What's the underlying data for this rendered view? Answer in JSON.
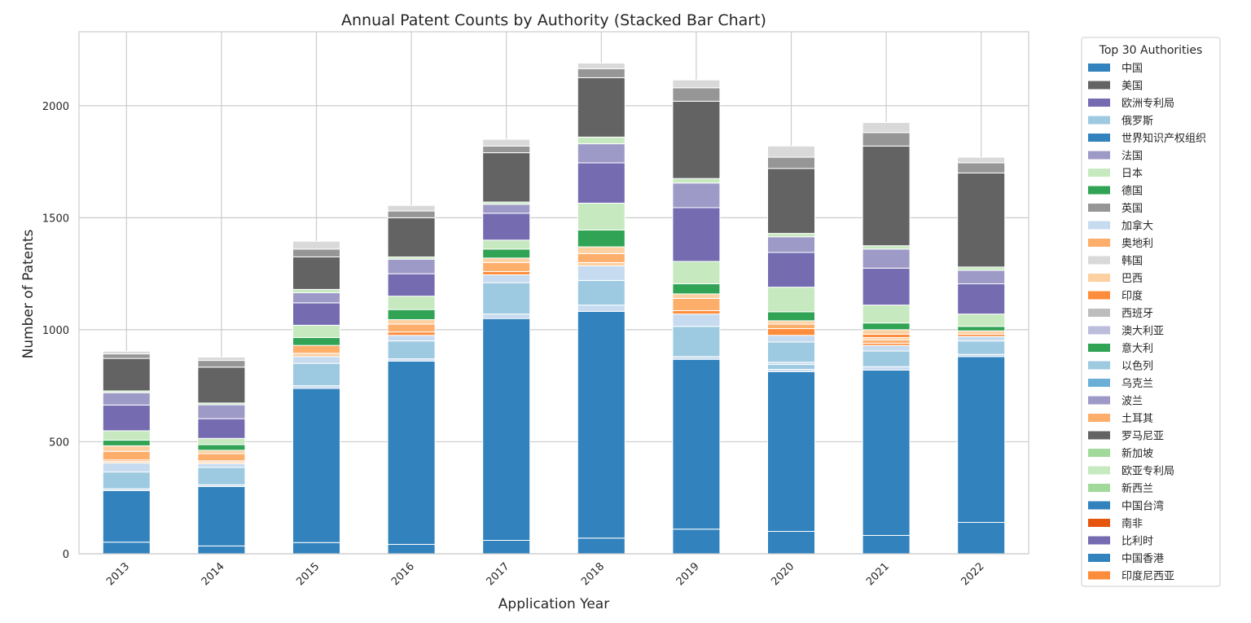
{
  "chart_data": {
    "type": "bar",
    "stacked": true,
    "title": "Annual Patent Counts by Authority (Stacked Bar Chart)",
    "xlabel": "Application Year",
    "ylabel": "Number of Patents",
    "ylim": [
      0,
      2330
    ],
    "yticks": [
      0,
      500,
      1000,
      1500,
      2000
    ],
    "grid": true,
    "legend_title": "Top 30 Authorities",
    "legend_position": "outside-right",
    "categories": [
      "2013",
      "2014",
      "2015",
      "2016",
      "2017",
      "2018",
      "2019",
      "2020",
      "2021",
      "2022"
    ],
    "series": [
      {
        "name": "中国",
        "color": "#3182bd",
        "values": [
          52,
          35,
          50,
          42,
          60,
          70,
          110,
          100,
          82,
          140
        ]
      },
      {
        "name": "美国",
        "color": "#636363",
        "values": [
          0,
          0,
          0,
          0,
          0,
          0,
          0,
          0,
          0,
          0
        ]
      },
      {
        "name": "欧洲专利局",
        "color": "#756bb1",
        "values": [
          0,
          0,
          0,
          0,
          0,
          0,
          0,
          0,
          0,
          0
        ]
      },
      {
        "name": "俄罗斯",
        "color": "#9ecae1",
        "values": [
          0,
          0,
          0,
          0,
          0,
          0,
          0,
          0,
          0,
          0
        ]
      },
      {
        "name": "世界知识产权组织",
        "color": "#3182bd",
        "values": [
          230,
          265,
          688,
          818,
          990,
          1012,
          758,
          713,
          738,
          740
        ]
      },
      {
        "name": "法国",
        "color": "#9e9ac8",
        "values": [
          0,
          0,
          0,
          0,
          0,
          0,
          0,
          0,
          0,
          0
        ]
      },
      {
        "name": "日本",
        "color": "#c7e9c0",
        "values": [
          0,
          0,
          0,
          0,
          0,
          0,
          0,
          0,
          0,
          0
        ]
      },
      {
        "name": "德国",
        "color": "#31a354",
        "values": [
          0,
          0,
          0,
          0,
          0,
          0,
          0,
          0,
          0,
          0
        ]
      },
      {
        "name": "英国",
        "color": "#969696",
        "values": [
          0,
          0,
          0,
          0,
          0,
          0,
          0,
          0,
          0,
          0
        ]
      },
      {
        "name": "加拿大",
        "color": "#c6dbef",
        "values": [
          0,
          0,
          0,
          0,
          0,
          0,
          0,
          0,
          0,
          0
        ]
      },
      {
        "name": "奥地利",
        "color": "#fdae6b",
        "values": [
          0,
          0,
          0,
          0,
          0,
          0,
          0,
          0,
          0,
          0
        ]
      },
      {
        "name": "韩国",
        "color": "#d9d9d9",
        "values": [
          0,
          0,
          0,
          0,
          0,
          0,
          0,
          0,
          0,
          0
        ]
      },
      {
        "name": "巴西",
        "color": "#fdd0a2",
        "values": [
          0,
          0,
          0,
          0,
          0,
          0,
          0,
          0,
          0,
          0
        ]
      },
      {
        "name": "印度",
        "color": "#fd8d3c",
        "values": [
          0,
          0,
          0,
          0,
          0,
          0,
          0,
          0,
          0,
          0
        ]
      },
      {
        "name": "西班牙",
        "color": "#bdbdbd",
        "values": [
          0,
          0,
          0,
          0,
          0,
          0,
          0,
          0,
          0,
          0
        ]
      },
      {
        "name": "澳大利亚",
        "color": "#bcbddc",
        "values": [
          0,
          0,
          0,
          0,
          0,
          0,
          0,
          0,
          0,
          0
        ]
      },
      {
        "name": "意大利",
        "color": "#31a354",
        "values": [
          0,
          0,
          0,
          0,
          0,
          0,
          0,
          0,
          0,
          0
        ]
      },
      {
        "name": "以色列",
        "color": "#9ecae1",
        "values": [
          0,
          0,
          0,
          0,
          0,
          0,
          0,
          0,
          0,
          0
        ]
      },
      {
        "name": "乌克兰",
        "color": "#6baed6",
        "values": [
          0,
          0,
          0,
          0,
          0,
          0,
          0,
          0,
          0,
          0
        ]
      },
      {
        "name": "波兰",
        "color": "#9e9ac8",
        "values": [
          0,
          0,
          0,
          0,
          0,
          0,
          0,
          0,
          0,
          0
        ]
      },
      {
        "name": "土耳其",
        "color": "#fdae6b",
        "values": [
          0,
          0,
          0,
          0,
          0,
          0,
          0,
          0,
          0,
          0
        ]
      },
      {
        "name": "罗马尼亚",
        "color": "#636363",
        "values": [
          0,
          0,
          0,
          0,
          0,
          0,
          0,
          0,
          0,
          0
        ]
      },
      {
        "name": "新加坡",
        "color": "#a1d99b",
        "values": [
          0,
          0,
          0,
          0,
          0,
          0,
          0,
          0,
          0,
          0
        ]
      },
      {
        "name": "欧亚专利局",
        "color": "#c7e9c0",
        "values": [
          0,
          0,
          0,
          0,
          0,
          0,
          0,
          0,
          0,
          0
        ]
      },
      {
        "name": "新西兰",
        "color": "#a1d99b",
        "values": [
          0,
          0,
          0,
          0,
          0,
          0,
          0,
          0,
          0,
          0
        ]
      },
      {
        "name": "中国台湾",
        "color": "#3182bd",
        "values": [
          0,
          0,
          0,
          0,
          0,
          0,
          0,
          0,
          0,
          0
        ]
      },
      {
        "name": "南非",
        "color": "#e6550d",
        "values": [
          0,
          0,
          0,
          0,
          0,
          0,
          0,
          0,
          0,
          0
        ]
      },
      {
        "name": "比利时",
        "color": "#756bb1",
        "values": [
          0,
          0,
          0,
          0,
          0,
          0,
          0,
          0,
          0,
          0
        ]
      },
      {
        "name": "中国香港",
        "color": "#3182bd",
        "values": [
          0,
          0,
          0,
          0,
          0,
          0,
          0,
          0,
          0,
          0
        ]
      },
      {
        "name": "印度尼西亚",
        "color": "#fd8d3c",
        "values": [
          0,
          0,
          0,
          0,
          0,
          0,
          0,
          0,
          0,
          0
        ]
      }
    ],
    "stack_segments": [
      [
        {
          "color": "#3182bd",
          "value": 52
        },
        {
          "color": "#3182bd",
          "value": 230
        },
        {
          "color": "#c6dbef",
          "value": 8
        },
        {
          "color": "#9ecae1",
          "value": 75
        },
        {
          "color": "#c6dbef",
          "value": 40
        },
        {
          "color": "#fdd0a2",
          "value": 8
        },
        {
          "color": "#fd8d3c",
          "value": 6
        },
        {
          "color": "#fdae6b",
          "value": 38
        },
        {
          "color": "#fdd0a2",
          "value": 25
        },
        {
          "color": "#31a354",
          "value": 25
        },
        {
          "color": "#c7e9c0",
          "value": 42
        },
        {
          "color": "#756bb1",
          "value": 115
        },
        {
          "color": "#9e9ac8",
          "value": 55
        },
        {
          "color": "#c7e9c0",
          "value": 8
        },
        {
          "color": "#636363",
          "value": 145
        },
        {
          "color": "#969696",
          "value": 20
        },
        {
          "color": "#d9d9d9",
          "value": 12
        }
      ],
      [
        {
          "color": "#3182bd",
          "value": 35
        },
        {
          "color": "#3182bd",
          "value": 265
        },
        {
          "color": "#c6dbef",
          "value": 8
        },
        {
          "color": "#9ecae1",
          "value": 78
        },
        {
          "color": "#c6dbef",
          "value": 16
        },
        {
          "color": "#fdd0a2",
          "value": 8
        },
        {
          "color": "#fd8d3c",
          "value": 5
        },
        {
          "color": "#fdae6b",
          "value": 32
        },
        {
          "color": "#fdd0a2",
          "value": 15
        },
        {
          "color": "#31a354",
          "value": 25
        },
        {
          "color": "#c7e9c0",
          "value": 28
        },
        {
          "color": "#756bb1",
          "value": 88
        },
        {
          "color": "#9e9ac8",
          "value": 62
        },
        {
          "color": "#c7e9c0",
          "value": 8
        },
        {
          "color": "#636363",
          "value": 160
        },
        {
          "color": "#969696",
          "value": 30
        },
        {
          "color": "#d9d9d9",
          "value": 15
        }
      ],
      [
        {
          "color": "#3182bd",
          "value": 50
        },
        {
          "color": "#3182bd",
          "value": 688
        },
        {
          "color": "#c6dbef",
          "value": 12
        },
        {
          "color": "#9ecae1",
          "value": 100
        },
        {
          "color": "#c6dbef",
          "value": 30
        },
        {
          "color": "#fdd0a2",
          "value": 15
        },
        {
          "color": "#fdae6b",
          "value": 35
        },
        {
          "color": "#31a354",
          "value": 35
        },
        {
          "color": "#c7e9c0",
          "value": 55
        },
        {
          "color": "#756bb1",
          "value": 100
        },
        {
          "color": "#9e9ac8",
          "value": 45
        },
        {
          "color": "#c7e9c0",
          "value": 15
        },
        {
          "color": "#636363",
          "value": 145
        },
        {
          "color": "#969696",
          "value": 35
        },
        {
          "color": "#d9d9d9",
          "value": 35
        }
      ],
      [
        {
          "color": "#3182bd",
          "value": 42
        },
        {
          "color": "#3182bd",
          "value": 818
        },
        {
          "color": "#c6dbef",
          "value": 10
        },
        {
          "color": "#9ecae1",
          "value": 80
        },
        {
          "color": "#c6dbef",
          "value": 25
        },
        {
          "color": "#fd8d3c",
          "value": 15
        },
        {
          "color": "#fdae6b",
          "value": 35
        },
        {
          "color": "#fdd0a2",
          "value": 20
        },
        {
          "color": "#31a354",
          "value": 45
        },
        {
          "color": "#c7e9c0",
          "value": 60
        },
        {
          "color": "#756bb1",
          "value": 100
        },
        {
          "color": "#9e9ac8",
          "value": 65
        },
        {
          "color": "#c7e9c0",
          "value": 10
        },
        {
          "color": "#636363",
          "value": 175
        },
        {
          "color": "#969696",
          "value": 30
        },
        {
          "color": "#d9d9d9",
          "value": 25
        }
      ],
      [
        {
          "color": "#3182bd",
          "value": 60
        },
        {
          "color": "#3182bd",
          "value": 990
        },
        {
          "color": "#c6dbef",
          "value": 20
        },
        {
          "color": "#9ecae1",
          "value": 140
        },
        {
          "color": "#c6dbef",
          "value": 35
        },
        {
          "color": "#fd8d3c",
          "value": 15
        },
        {
          "color": "#fdae6b",
          "value": 40
        },
        {
          "color": "#fdd0a2",
          "value": 20
        },
        {
          "color": "#31a354",
          "value": 40
        },
        {
          "color": "#c7e9c0",
          "value": 40
        },
        {
          "color": "#756bb1",
          "value": 120
        },
        {
          "color": "#9e9ac8",
          "value": 40
        },
        {
          "color": "#c7e9c0",
          "value": 10
        },
        {
          "color": "#636363",
          "value": 220
        },
        {
          "color": "#969696",
          "value": 30
        },
        {
          "color": "#d9d9d9",
          "value": 30
        }
      ],
      [
        {
          "color": "#3182bd",
          "value": 70
        },
        {
          "color": "#3182bd",
          "value": 1012
        },
        {
          "color": "#c6dbef",
          "value": 28
        },
        {
          "color": "#9ecae1",
          "value": 110
        },
        {
          "color": "#c6dbef",
          "value": 65
        },
        {
          "color": "#fdd0a2",
          "value": 15
        },
        {
          "color": "#fdae6b",
          "value": 40
        },
        {
          "color": "#fdd0a2",
          "value": 30
        },
        {
          "color": "#31a354",
          "value": 75
        },
        {
          "color": "#c7e9c0",
          "value": 120
        },
        {
          "color": "#756bb1",
          "value": 180
        },
        {
          "color": "#9e9ac8",
          "value": 85
        },
        {
          "color": "#c7e9c0",
          "value": 30
        },
        {
          "color": "#636363",
          "value": 265
        },
        {
          "color": "#969696",
          "value": 40
        },
        {
          "color": "#d9d9d9",
          "value": 25
        }
      ],
      [
        {
          "color": "#3182bd",
          "value": 110
        },
        {
          "color": "#3182bd",
          "value": 758
        },
        {
          "color": "#c6dbef",
          "value": 12
        },
        {
          "color": "#9ecae1",
          "value": 135
        },
        {
          "color": "#c6dbef",
          "value": 55
        },
        {
          "color": "#fd8d3c",
          "value": 15
        },
        {
          "color": "#fdae6b",
          "value": 55
        },
        {
          "color": "#fdd0a2",
          "value": 20
        },
        {
          "color": "#31a354",
          "value": 45
        },
        {
          "color": "#c7e9c0",
          "value": 100
        },
        {
          "color": "#756bb1",
          "value": 240
        },
        {
          "color": "#9e9ac8",
          "value": 110
        },
        {
          "color": "#c7e9c0",
          "value": 20
        },
        {
          "color": "#636363",
          "value": 345
        },
        {
          "color": "#969696",
          "value": 60
        },
        {
          "color": "#d9d9d9",
          "value": 35
        }
      ],
      [
        {
          "color": "#3182bd",
          "value": 100
        },
        {
          "color": "#3182bd",
          "value": 713
        },
        {
          "color": "#c6dbef",
          "value": 10
        },
        {
          "color": "#9ecae1",
          "value": 22
        },
        {
          "color": "#c6dbef",
          "value": 10
        },
        {
          "color": "#9ecae1",
          "value": 90
        },
        {
          "color": "#c6dbef",
          "value": 30
        },
        {
          "color": "#fd8d3c",
          "value": 30
        },
        {
          "color": "#fdae6b",
          "value": 20
        },
        {
          "color": "#fdd0a2",
          "value": 15
        },
        {
          "color": "#31a354",
          "value": 40
        },
        {
          "color": "#c7e9c0",
          "value": 110
        },
        {
          "color": "#756bb1",
          "value": 155
        },
        {
          "color": "#9e9ac8",
          "value": 70
        },
        {
          "color": "#c7e9c0",
          "value": 15
        },
        {
          "color": "#636363",
          "value": 290
        },
        {
          "color": "#969696",
          "value": 50
        },
        {
          "color": "#d9d9d9",
          "value": 50
        }
      ],
      [
        {
          "color": "#3182bd",
          "value": 82
        },
        {
          "color": "#3182bd",
          "value": 738
        },
        {
          "color": "#c6dbef",
          "value": 15
        },
        {
          "color": "#9ecae1",
          "value": 70
        },
        {
          "color": "#c6dbef",
          "value": 25
        },
        {
          "color": "#fd8d3c",
          "value": 10
        },
        {
          "color": "#fdae6b",
          "value": 15
        },
        {
          "color": "#fdd0a2",
          "value": 10
        },
        {
          "color": "#fd8d3c",
          "value": 15
        },
        {
          "color": "#fdd0a2",
          "value": 20
        },
        {
          "color": "#31a354",
          "value": 30
        },
        {
          "color": "#c7e9c0",
          "value": 80
        },
        {
          "color": "#756bb1",
          "value": 165
        },
        {
          "color": "#9e9ac8",
          "value": 85
        },
        {
          "color": "#c7e9c0",
          "value": 15
        },
        {
          "color": "#636363",
          "value": 445
        },
        {
          "color": "#969696",
          "value": 60
        },
        {
          "color": "#d9d9d9",
          "value": 45
        }
      ],
      [
        {
          "color": "#3182bd",
          "value": 140
        },
        {
          "color": "#3182bd",
          "value": 740
        },
        {
          "color": "#c6dbef",
          "value": 10
        },
        {
          "color": "#9ecae1",
          "value": 60
        },
        {
          "color": "#c6dbef",
          "value": 20
        },
        {
          "color": "#fd8d3c",
          "value": 10
        },
        {
          "color": "#fdd0a2",
          "value": 15
        },
        {
          "color": "#31a354",
          "value": 20
        },
        {
          "color": "#c7e9c0",
          "value": 55
        },
        {
          "color": "#756bb1",
          "value": 135
        },
        {
          "color": "#9e9ac8",
          "value": 60
        },
        {
          "color": "#c7e9c0",
          "value": 15
        },
        {
          "color": "#636363",
          "value": 420
        },
        {
          "color": "#969696",
          "value": 45
        },
        {
          "color": "#d9d9d9",
          "value": 25
        }
      ]
    ]
  }
}
